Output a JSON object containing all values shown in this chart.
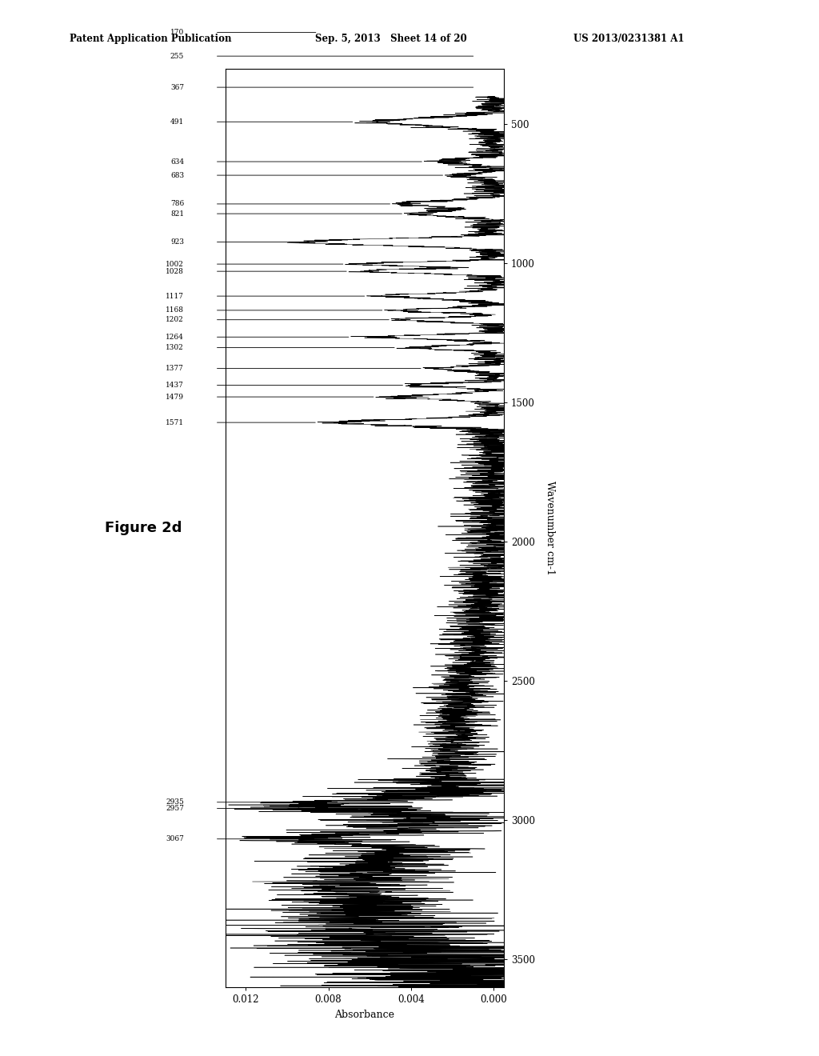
{
  "header_left": "Patent Application Publication",
  "header_mid": "Sep. 5, 2013   Sheet 14 of 20",
  "header_right": "US 2013/0231381 A1",
  "figure_label": "Figure 2d",
  "ylabel_rotated": "Wavenumber cm-1",
  "xlabel_rotated": "Absorbance",
  "x_ticks": [
    0.0,
    0.004,
    0.008,
    0.012
  ],
  "x_tick_labels": [
    "0.000",
    "0.004",
    "0.008",
    "0.012"
  ],
  "y_ticks": [
    500,
    1000,
    1500,
    2000,
    2500,
    3000,
    3500
  ],
  "wn_range": [
    400,
    3600
  ],
  "abs_range": [
    0.0,
    0.0135
  ],
  "peak_labels": [
    {
      "wn": 170,
      "label": "170"
    },
    {
      "wn": 255,
      "label": "255"
    },
    {
      "wn": 367,
      "label": "367"
    },
    {
      "wn": 491,
      "label": "491"
    },
    {
      "wn": 634,
      "label": "634"
    },
    {
      "wn": 683,
      "label": "683"
    },
    {
      "wn": 786,
      "label": "786"
    },
    {
      "wn": 821,
      "label": "821"
    },
    {
      "wn": 923,
      "label": "923"
    },
    {
      "wn": 1002,
      "label": "1002"
    },
    {
      "wn": 1028,
      "label": "1028"
    },
    {
      "wn": 1117,
      "label": "1117"
    },
    {
      "wn": 1168,
      "label": "1168"
    },
    {
      "wn": 1202,
      "label": "1202"
    },
    {
      "wn": 1264,
      "label": "1264"
    },
    {
      "wn": 1302,
      "label": "1302"
    },
    {
      "wn": 1377,
      "label": "1377"
    },
    {
      "wn": 1437,
      "label": "1437"
    },
    {
      "wn": 1479,
      "label": "1479"
    },
    {
      "wn": 1571,
      "label": "1571"
    },
    {
      "wn": 2935,
      "label": "2935"
    },
    {
      "wn": 2957,
      "label": "2957"
    },
    {
      "wn": 3067,
      "label": "3067"
    }
  ],
  "background_color": "#ffffff",
  "line_color": "#000000",
  "noise_seed": 42
}
